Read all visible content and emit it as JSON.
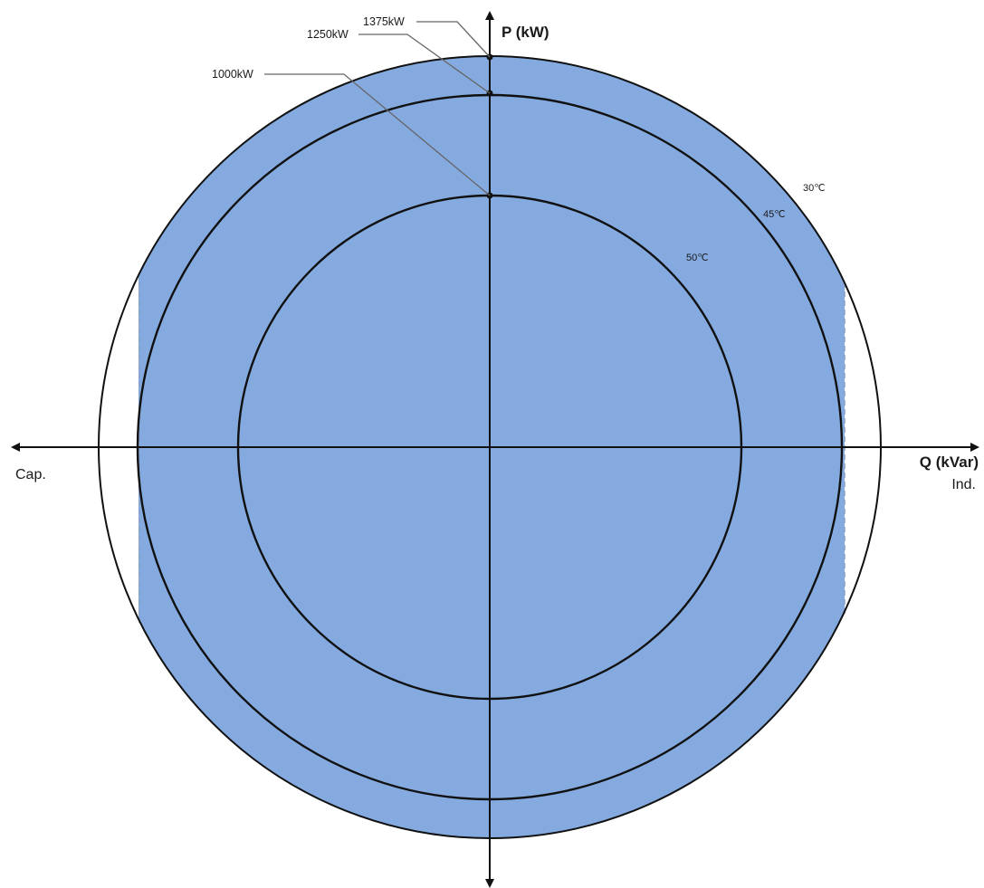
{
  "diagram": {
    "axes": {
      "vertical_label": "P (kW)",
      "horizontal_label": "Q (kVar)",
      "left_label": "Cap.",
      "right_label": "Ind."
    },
    "capability_circles": [
      {
        "power_label": "1375kW",
        "temperature_label": "30℃"
      },
      {
        "power_label": "1250kW",
        "temperature_label": "45℃"
      },
      {
        "power_label": "1000kW",
        "temperature_label": "50℃"
      }
    ],
    "colors": {
      "region_fill": "#84aadf",
      "line": "#111111",
      "callout_line": "#666666",
      "dashed_limit": "#8aa0c8"
    }
  }
}
